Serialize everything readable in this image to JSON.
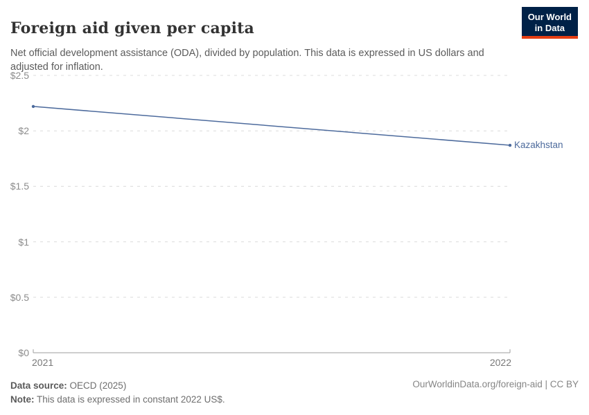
{
  "header": {
    "title": "Foreign aid given per capita",
    "subtitle": "Net official development assistance (ODA), divided by population. This data is expressed in US dollars and adjusted for inflation.",
    "logo": {
      "line1": "Our World",
      "line2": "in Data",
      "bg_color": "#002147",
      "accent_color": "#e63e13"
    }
  },
  "chart_data": {
    "type": "line",
    "title": "Foreign aid given per capita",
    "subtitle": "Net official development assistance (ODA), divided by population. This data is expressed in US dollars and adjusted for inflation.",
    "x": [
      2021,
      2022
    ],
    "xtick_labels": [
      "2021",
      "2022"
    ],
    "series": [
      {
        "name": "Kazakhstan",
        "color": "#4c6a9c",
        "x": [
          2021,
          2022
        ],
        "values": [
          2.22,
          1.87
        ]
      }
    ],
    "ylim": [
      0,
      2.5
    ],
    "yticks": [
      0,
      0.5,
      1,
      1.5,
      2,
      2.5
    ],
    "ytick_labels": [
      "$0",
      "$0.5",
      "$1",
      "$1.5",
      "$2",
      "$2.5"
    ],
    "grid": "dashed horizontal",
    "grid_color": "#dcdcdc",
    "axis_color": "#9e9e9e",
    "tick_label_color": "#8c8c8c",
    "legend_position": "end-of-line label"
  },
  "footer": {
    "source_label": "Data source:",
    "source_value": " OECD (2025)",
    "note_label": "Note:",
    "note_value": " This data is expressed in constant 2022 US$.",
    "citation": "OurWorldinData.org/foreign-aid | CC BY"
  }
}
